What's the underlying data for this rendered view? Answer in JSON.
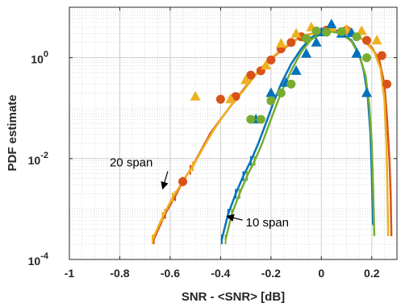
{
  "chart_data": {
    "type": "line",
    "xlabel": "SNR - <SNR> [dB]",
    "ylabel": "PDF estimate",
    "xlim": [
      -1,
      0.3
    ],
    "ylim": [
      0.0001,
      10
    ],
    "yscale": "log",
    "grid": "major and minor",
    "x_ticks": [
      {
        "value": -1,
        "label": "-1"
      },
      {
        "value": -0.8,
        "label": "-0.8"
      },
      {
        "value": -0.6,
        "label": "-0.6"
      },
      {
        "value": -0.4,
        "label": "-0.4"
      },
      {
        "value": -0.2,
        "label": "-0.2"
      },
      {
        "value": 0,
        "label": "0"
      },
      {
        "value": 0.2,
        "label": "0.2"
      }
    ],
    "y_ticks": [
      {
        "value": 0.0001,
        "base": "10",
        "exp": "-4"
      },
      {
        "value": 0.01,
        "base": "10",
        "exp": "-2"
      },
      {
        "value": 1,
        "base": "10",
        "exp": "0"
      }
    ],
    "colors": {
      "red": "#d95319",
      "yellow": "#edb120",
      "blue": "#0072bd",
      "green": "#77ac30",
      "grid": "#c8c8c8",
      "axis": "#262626"
    },
    "series": [
      {
        "group": "20 span",
        "color": "red",
        "marker": "circle",
        "curve": [
          [
            -0.665,
            0.00025
          ],
          [
            -0.62,
            0.0008
          ],
          [
            -0.58,
            0.0018
          ],
          [
            -0.55,
            0.0035
          ],
          [
            -0.52,
            0.006
          ],
          [
            -0.5,
            0.009
          ],
          [
            -0.47,
            0.017
          ],
          [
            -0.44,
            0.032
          ],
          [
            -0.4,
            0.06
          ],
          [
            -0.36,
            0.11
          ],
          [
            -0.32,
            0.2
          ],
          [
            -0.28,
            0.36
          ],
          [
            -0.24,
            0.6
          ],
          [
            -0.2,
            0.95
          ],
          [
            -0.15,
            1.5
          ],
          [
            -0.1,
            2.3
          ],
          [
            -0.05,
            2.9
          ],
          [
            0,
            3.3
          ],
          [
            0.05,
            3.5
          ],
          [
            0.1,
            3.3
          ],
          [
            0.15,
            2.6
          ],
          [
            0.2,
            1.6
          ],
          [
            0.23,
            0.9
          ],
          [
            0.25,
            0.3
          ],
          [
            0.26,
            0.07
          ],
          [
            0.27,
            0.01
          ],
          [
            0.275,
            0.002
          ],
          [
            0.278,
            0.0003
          ]
        ],
        "markers": [
          [
            -0.55,
            0.0035
          ],
          [
            -0.4,
            0.15
          ],
          [
            -0.34,
            0.17
          ],
          [
            -0.28,
            0.45
          ],
          [
            -0.24,
            0.55
          ],
          [
            -0.2,
            0.9
          ],
          [
            -0.16,
            1.5
          ],
          [
            -0.12,
            2.0
          ],
          [
            -0.08,
            2.6
          ],
          [
            0.02,
            3.5
          ],
          [
            0.1,
            3.5
          ],
          [
            0.18,
            2.2
          ],
          [
            0.24,
            1.1
          ],
          [
            0.26,
            0.3
          ]
        ]
      },
      {
        "group": "20 span",
        "color": "yellow",
        "marker": "triangle",
        "curve": [
          [
            -0.67,
            0.00025
          ],
          [
            -0.63,
            0.0007
          ],
          [
            -0.59,
            0.0017
          ],
          [
            -0.55,
            0.0035
          ],
          [
            -0.51,
            0.007
          ],
          [
            -0.47,
            0.016
          ],
          [
            -0.43,
            0.035
          ],
          [
            -0.39,
            0.07
          ],
          [
            -0.35,
            0.13
          ],
          [
            -0.31,
            0.22
          ],
          [
            -0.27,
            0.4
          ],
          [
            -0.22,
            0.8
          ],
          [
            -0.17,
            1.3
          ],
          [
            -0.12,
            2.0
          ],
          [
            -0.06,
            2.8
          ],
          [
            0,
            3.2
          ],
          [
            0.06,
            3.3
          ],
          [
            0.12,
            3.0
          ],
          [
            0.17,
            2.2
          ],
          [
            0.21,
            1.3
          ],
          [
            0.235,
            0.6
          ],
          [
            0.25,
            0.15
          ],
          [
            0.258,
            0.02
          ],
          [
            0.262,
            0.003
          ],
          [
            0.265,
            0.0003
          ]
        ],
        "markers": [
          [
            -0.5,
            0.17
          ],
          [
            -0.36,
            0.15
          ],
          [
            -0.3,
            0.36
          ],
          [
            -0.22,
            0.7
          ],
          [
            -0.16,
            1.9
          ],
          [
            -0.1,
            3.0
          ],
          [
            -0.04,
            4.0
          ],
          [
            0.04,
            4.0
          ],
          [
            0.1,
            3.6
          ],
          [
            0.16,
            3.4
          ],
          [
            0.22,
            2.2
          ]
        ]
      },
      {
        "group": "10 span",
        "color": "blue",
        "marker": "triangle",
        "curve": [
          [
            -0.395,
            0.00025
          ],
          [
            -0.37,
            0.0008
          ],
          [
            -0.34,
            0.002
          ],
          [
            -0.31,
            0.0045
          ],
          [
            -0.28,
            0.009
          ],
          [
            -0.25,
            0.02
          ],
          [
            -0.22,
            0.05
          ],
          [
            -0.19,
            0.13
          ],
          [
            -0.16,
            0.3
          ],
          [
            -0.12,
            0.75
          ],
          [
            -0.08,
            1.5
          ],
          [
            -0.04,
            2.5
          ],
          [
            0,
            3.3
          ],
          [
            0.04,
            3.5
          ],
          [
            0.08,
            3.1
          ],
          [
            0.12,
            2.2
          ],
          [
            0.15,
            1.2
          ],
          [
            0.17,
            0.5
          ],
          [
            0.185,
            0.15
          ],
          [
            0.195,
            0.03
          ],
          [
            0.2,
            0.005
          ],
          [
            0.205,
            0.0005
          ]
        ],
        "markers": [
          [
            -0.26,
            0.06
          ],
          [
            -0.2,
            0.2
          ],
          [
            -0.14,
            0.32
          ],
          [
            -0.1,
            0.55
          ],
          [
            -0.06,
            1.2
          ],
          [
            -0.02,
            2.0
          ],
          [
            0,
            3.2
          ],
          [
            0.04,
            4.6
          ],
          [
            0.08,
            3.0
          ],
          [
            0.12,
            3.1
          ],
          [
            0.14,
            1.2
          ],
          [
            0.18,
            0.2
          ]
        ]
      },
      {
        "group": "10 span",
        "color": "green",
        "marker": "circle",
        "curve": [
          [
            -0.38,
            0.00025
          ],
          [
            -0.355,
            0.0008
          ],
          [
            -0.325,
            0.002
          ],
          [
            -0.295,
            0.0045
          ],
          [
            -0.265,
            0.009
          ],
          [
            -0.235,
            0.02
          ],
          [
            -0.2,
            0.06
          ],
          [
            -0.16,
            0.2
          ],
          [
            -0.12,
            0.55
          ],
          [
            -0.08,
            1.3
          ],
          [
            -0.04,
            2.3
          ],
          [
            0,
            3.0
          ],
          [
            0.04,
            3.3
          ],
          [
            0.08,
            3.0
          ],
          [
            0.12,
            2.1
          ],
          [
            0.15,
            1.1
          ],
          [
            0.175,
            0.45
          ],
          [
            0.19,
            0.12
          ],
          [
            0.2,
            0.02
          ],
          [
            0.205,
            0.003
          ],
          [
            0.21,
            0.0003
          ]
        ],
        "markers": [
          [
            -0.28,
            0.06
          ],
          [
            -0.24,
            0.06
          ],
          [
            -0.2,
            0.14
          ],
          [
            -0.16,
            0.2
          ],
          [
            -0.12,
            0.3
          ],
          [
            -0.06,
            2.4
          ],
          [
            -0.02,
            3.4
          ],
          [
            0.02,
            3.2
          ],
          [
            0.08,
            3.3
          ],
          [
            0.14,
            2.6
          ],
          [
            0.18,
            1.0
          ]
        ]
      }
    ],
    "annotations": [
      {
        "text": "20 span",
        "text_x": -0.84,
        "text_y": 0.007,
        "arrow_to_x": -0.63,
        "arrow_to_y": 0.0025
      },
      {
        "text": "10 span",
        "text_x": -0.3,
        "text_y": 0.00045,
        "arrow_to_x": -0.375,
        "arrow_to_y": 0.00072
      }
    ]
  }
}
